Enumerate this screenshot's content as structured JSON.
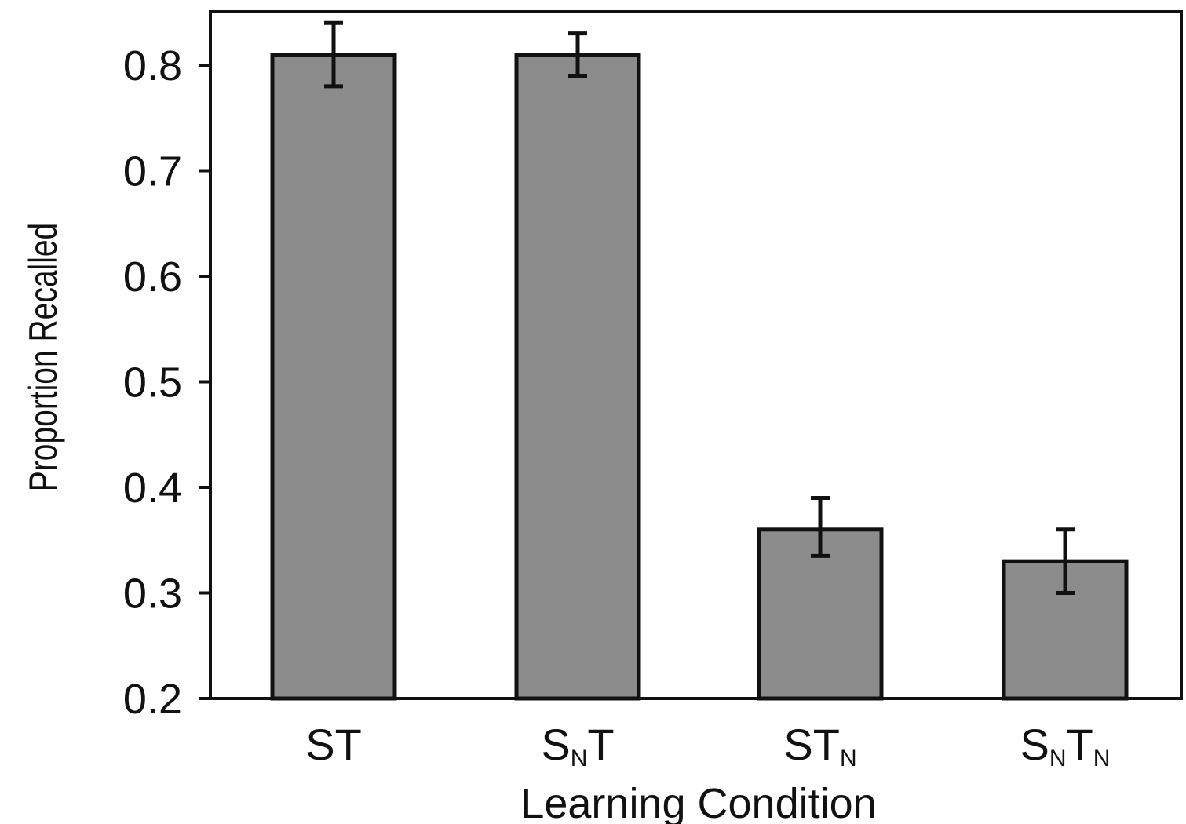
{
  "chart_data": {
    "type": "bar",
    "title": "",
    "xlabel": "Learning Condition",
    "ylabel": "Proportion Recalled",
    "ylim": [
      0.2,
      0.85
    ],
    "yticks": [
      "0.2",
      "0.3",
      "0.4",
      "0.5",
      "0.6",
      "0.7",
      "0.8"
    ],
    "categories": [
      {
        "base": "S",
        "sub1": "",
        "mid": "T",
        "sub2": ""
      },
      {
        "base": "S",
        "sub1": "N",
        "mid": "T",
        "sub2": ""
      },
      {
        "base": "S",
        "sub1": "",
        "mid": "T",
        "sub2": "N"
      },
      {
        "base": "S",
        "sub1": "N",
        "mid": "T",
        "sub2": "N"
      }
    ],
    "category_names": [
      "ST",
      "SNT",
      "STN",
      "SNTN"
    ],
    "values": [
      0.81,
      0.81,
      0.36,
      0.33
    ],
    "error_low": [
      0.78,
      0.79,
      0.335,
      0.3
    ],
    "error_high": [
      0.84,
      0.83,
      0.39,
      0.36
    ],
    "grid": false,
    "legend": "none",
    "bar_color": "#8c8c8c",
    "edge_color": "#111111"
  }
}
